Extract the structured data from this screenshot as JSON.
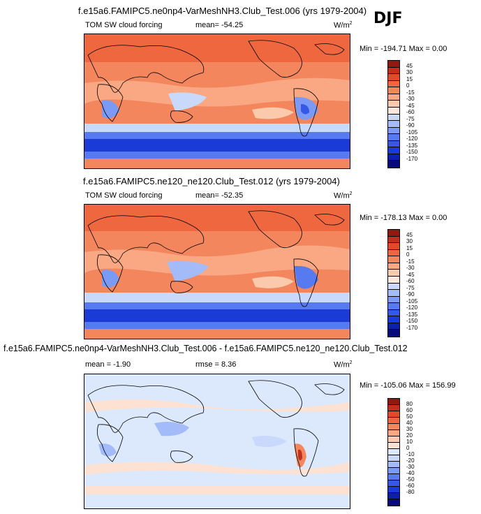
{
  "season": "DJF",
  "colors": {
    "absolute_scale": [
      "#060a7a",
      "#0c1fb0",
      "#1a3bd6",
      "#3559e6",
      "#577af0",
      "#7b9af5",
      "#a3bcf9",
      "#c9d9fb",
      "#fbe7dc",
      "#fbc9ac",
      "#f9a883",
      "#f4865d",
      "#ee673f",
      "#e24a2b",
      "#c22f1c",
      "#8e1a10"
    ],
    "diff_scale": [
      "#060a7a",
      "#0c1fb0",
      "#1a3bd6",
      "#3559e6",
      "#577af0",
      "#7b9af5",
      "#a3bcf9",
      "#c9d9fb",
      "#dce8fb",
      "#fde2d4",
      "#fbc9ac",
      "#f9a883",
      "#f4865d",
      "#ee673f",
      "#e24a2b",
      "#c22f1c",
      "#8e1a10"
    ]
  },
  "panels": [
    {
      "title": "f.e15a6.FAMIPC5.ne0np4-VarMeshNH3.Club_Test.006 (yrs 1979-2004)",
      "left_label": "TOM SW cloud forcing",
      "center_label": "mean= -54.25",
      "units": "W/m",
      "units_sup": "2",
      "minmax": "Min = -194.71 Max =   0.00",
      "ticks": [
        "45",
        "30",
        "15",
        "0",
        "-15",
        "-30",
        "-45",
        "-60",
        "-75",
        "-90",
        "-105",
        "-120",
        "-135",
        "-150",
        "-170"
      ]
    },
    {
      "title": "f.e15a6.FAMIPC5.ne120_ne120.Club_Test.012 (yrs 1979-2004)",
      "left_label": "TOM SW cloud forcing",
      "center_label": "mean= -52.35",
      "units": "W/m",
      "units_sup": "2",
      "minmax": "Min = -178.13 Max =   0.00",
      "ticks": [
        "45",
        "30",
        "15",
        "0",
        "-15",
        "-30",
        "-45",
        "-60",
        "-75",
        "-90",
        "-105",
        "-120",
        "-135",
        "-150",
        "-170"
      ]
    },
    {
      "title": "f.e15a6.FAMIPC5.ne0np4-VarMeshNH3.Club_Test.006 - f.e15a6.FAMIPC5.ne120_ne120.Club_Test.012",
      "left_label": "mean =  -1.90",
      "center_label": "rmse =  8.36",
      "units": "W/m",
      "units_sup": "2",
      "minmax": "Min = -105.06 Max = 156.99",
      "ticks": [
        "80",
        "60",
        "50",
        "40",
        "30",
        "20",
        "10",
        "0",
        "-10",
        "-20",
        "-30",
        "-40",
        "-50",
        "-60",
        "-80"
      ]
    }
  ]
}
